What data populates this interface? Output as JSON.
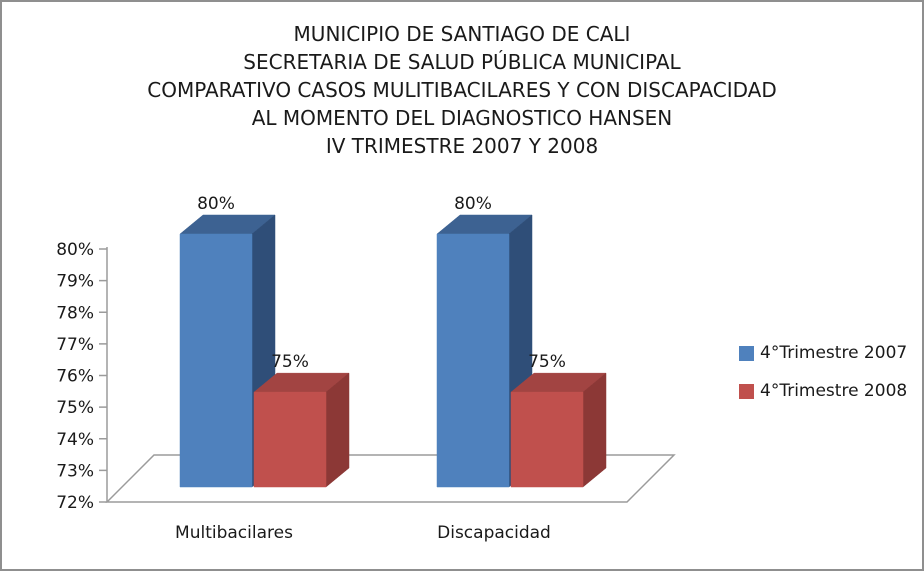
{
  "chart_data": {
    "type": "bar",
    "style": "3d-column",
    "title_lines": [
      "MUNICIPIO DE SANTIAGO DE CALI",
      "SECRETARIA DE SALUD PÚBLICA MUNICIPAL",
      "COMPARATIVO CASOS MULITIBACILARES Y CON DISCAPACIDAD",
      "AL MOMENTO DEL DIAGNOSTICO HANSEN",
      "IV TRIMESTRE 2007 Y 2008"
    ],
    "categories": [
      "Multibacilares",
      "Discapacidad"
    ],
    "series": [
      {
        "name": "4°Trimestre 2007",
        "values": [
          80,
          80
        ],
        "data_labels": [
          "80%",
          "80%"
        ],
        "colors": {
          "front": "#4F81BD",
          "top": "#3D6292",
          "side": "#2F4E78"
        }
      },
      {
        "name": "4°Trimestre 2008",
        "values": [
          75,
          75
        ],
        "data_labels": [
          "75%",
          "75%"
        ],
        "colors": {
          "front": "#C0504D",
          "top": "#A24442",
          "side": "#8C3836"
        }
      }
    ],
    "y_axis": {
      "min": 72,
      "max": 80,
      "step": 1,
      "tick_labels": [
        "80%",
        "79%",
        "78%",
        "77%",
        "76%",
        "75%",
        "74%",
        "73%",
        "72%"
      ]
    },
    "legend": {
      "position": "right"
    },
    "grid": false,
    "background": "#FFFFFF",
    "text_color": "#1A1A1A",
    "axis_line_color": "#9B9B9B",
    "frame_border_color": "#8F8F8F"
  }
}
